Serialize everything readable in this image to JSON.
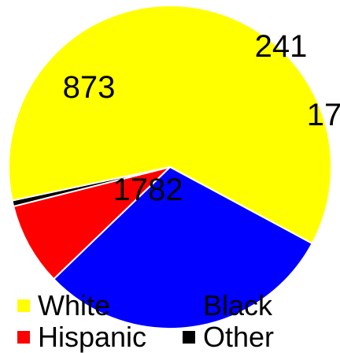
{
  "chart_data": {
    "type": "pie",
    "categories": [
      "White",
      "Black",
      "Hispanic",
      "Other"
    ],
    "values": [
      1782,
      873,
      241,
      17
    ],
    "colors": [
      "#FFFF00",
      "#0000FF",
      "#FF0000",
      "#000000"
    ],
    "data_labels": [
      "1782",
      "873",
      "241",
      "17"
    ],
    "legend": {
      "placement": "bottom",
      "entries": [
        "White",
        "Black",
        "Hispanic",
        "Other"
      ]
    }
  }
}
